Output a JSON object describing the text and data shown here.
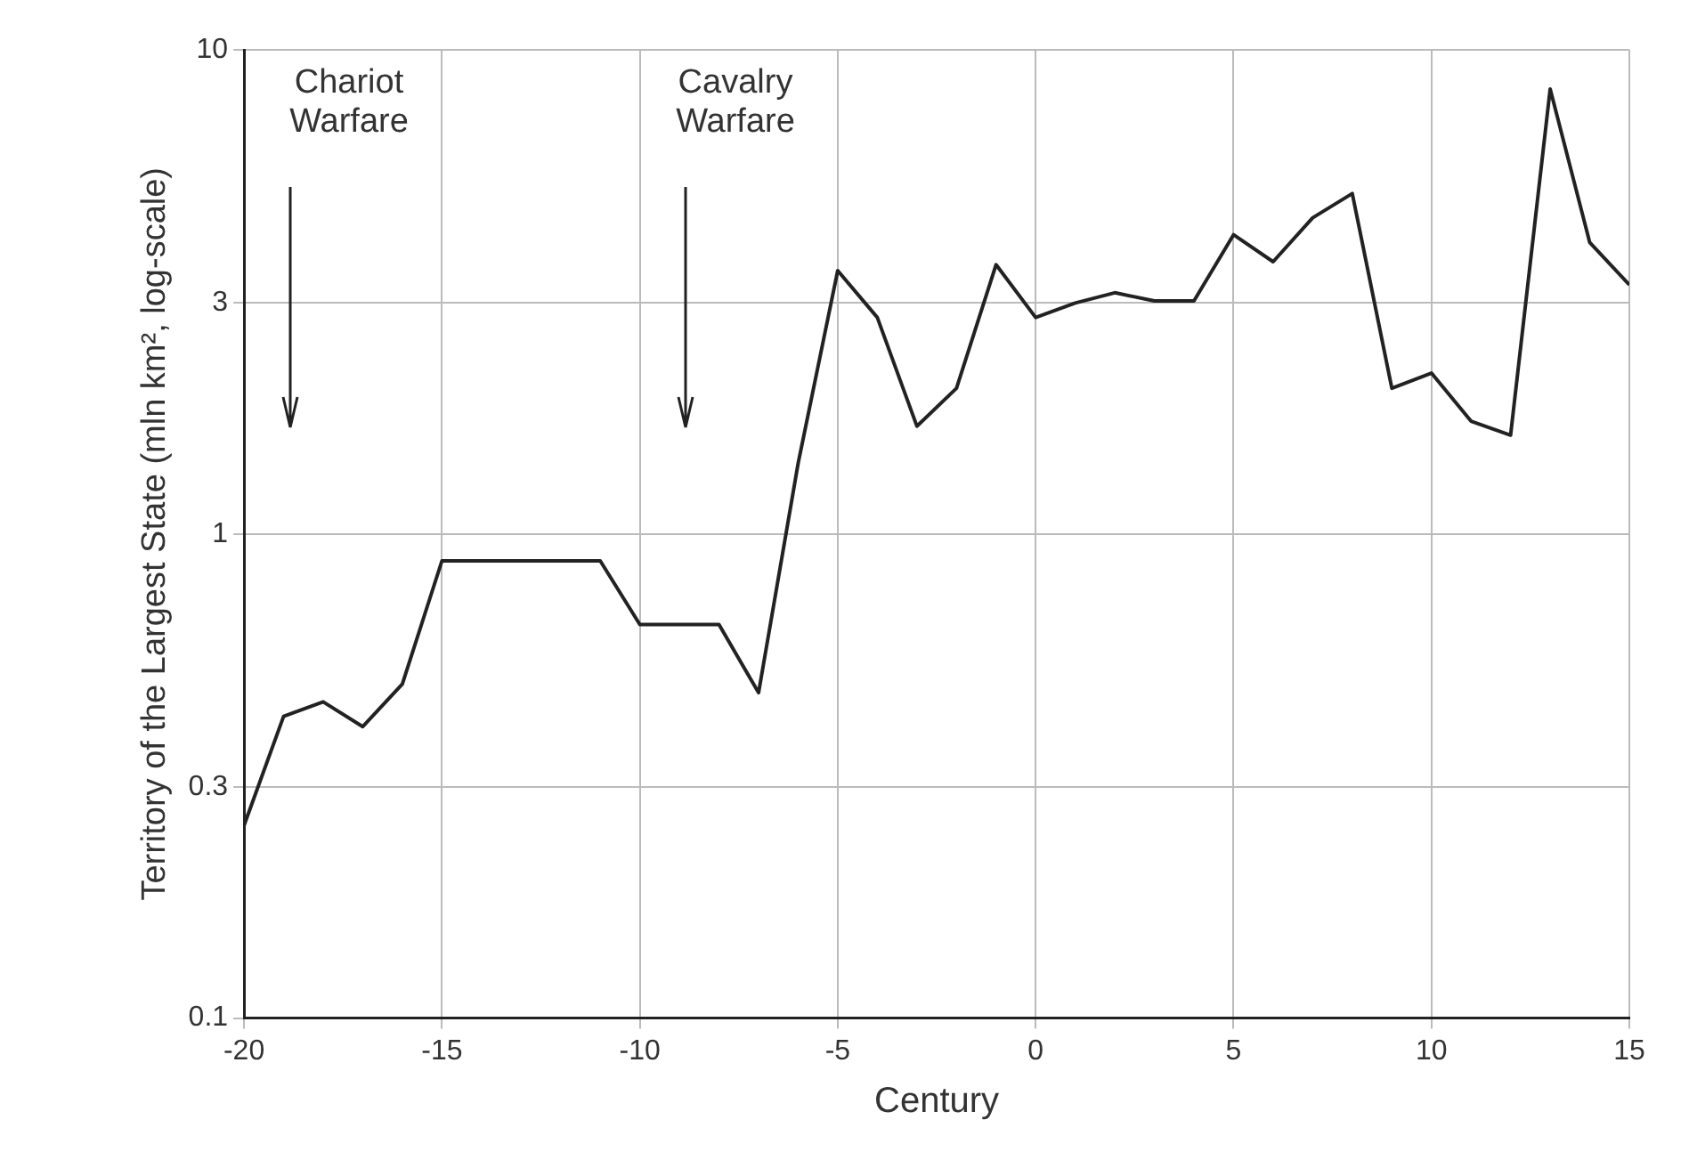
{
  "chart_data": {
    "type": "line",
    "xlabel": "Century",
    "ylabel": "Territory of the Largest State (mln km², log-scale)",
    "x": [
      -20,
      -19,
      -18,
      -17,
      -16,
      -15,
      -14,
      -13,
      -12,
      -11,
      -10,
      -9,
      -8,
      -7,
      -6,
      -5,
      -4,
      -3,
      -2,
      -1,
      0,
      1,
      2,
      3,
      4,
      5,
      6,
      7,
      8,
      9,
      10,
      11,
      12,
      13,
      14,
      15
    ],
    "series": [
      {
        "color": "#222222",
        "values": [
          0.25,
          0.42,
          0.45,
          0.4,
          0.49,
          0.88,
          0.88,
          0.88,
          0.88,
          0.88,
          0.65,
          0.65,
          0.65,
          0.47,
          1.4,
          3.5,
          2.8,
          1.67,
          2.0,
          3.6,
          2.8,
          3.0,
          3.15,
          3.03,
          3.03,
          4.15,
          3.65,
          4.5,
          5.05,
          2.0,
          2.15,
          1.71,
          1.6,
          8.3,
          4.0,
          3.27
        ]
      }
    ],
    "xlim": [
      -20,
      15
    ],
    "xticks": [
      -20,
      -15,
      -10,
      -5,
      0,
      5,
      10,
      15
    ],
    "ylim": [
      0.1,
      10
    ],
    "yticks": [
      0.1,
      0.3,
      1,
      3,
      10
    ],
    "log": "y",
    "grid": true,
    "legend": false,
    "marker": "none",
    "line_style": "solid",
    "annotations": [
      "Chariot Warfare",
      "Cavalry Warfare"
    ]
  }
}
